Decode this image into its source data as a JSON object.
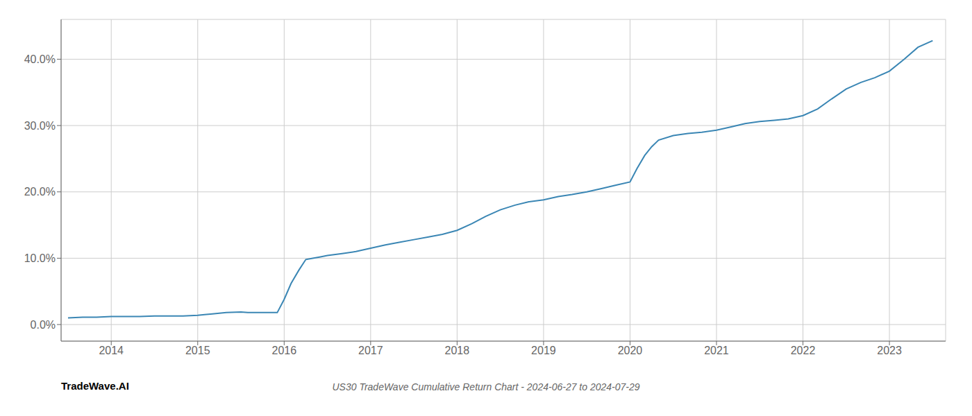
{
  "chart_data": {
    "type": "line",
    "title": "US30 TradeWave Cumulative Return Chart - 2024-06-27 to 2024-07-29",
    "annotations": [
      "TradeWave.AI"
    ],
    "color": "#3a86b4",
    "x": [
      2013.5,
      2013.67,
      2013.83,
      2014.0,
      2014.17,
      2014.33,
      2014.5,
      2014.67,
      2014.83,
      2015.0,
      2015.08,
      2015.17,
      2015.25,
      2015.33,
      2015.5,
      2015.58,
      2015.67,
      2015.75,
      2015.83,
      2015.92,
      2016.0,
      2016.08,
      2016.17,
      2016.25,
      2016.33,
      2016.42,
      2016.5,
      2016.67,
      2016.83,
      2017.0,
      2017.17,
      2017.33,
      2017.5,
      2017.67,
      2017.83,
      2018.0,
      2018.17,
      2018.33,
      2018.5,
      2018.67,
      2018.83,
      2019.0,
      2019.17,
      2019.33,
      2019.5,
      2019.67,
      2019.83,
      2020.0,
      2020.08,
      2020.17,
      2020.25,
      2020.33,
      2020.5,
      2020.67,
      2020.83,
      2021.0,
      2021.17,
      2021.33,
      2021.5,
      2021.67,
      2021.83,
      2022.0,
      2022.17,
      2022.33,
      2022.5,
      2022.67,
      2022.83,
      2023.0,
      2023.17,
      2023.33,
      2023.5
    ],
    "values": [
      0.01,
      0.011,
      0.011,
      0.012,
      0.012,
      0.012,
      0.013,
      0.013,
      0.013,
      0.014,
      0.015,
      0.016,
      0.017,
      0.018,
      0.019,
      0.018,
      0.018,
      0.018,
      0.018,
      0.018,
      0.038,
      0.062,
      0.082,
      0.098,
      0.1,
      0.102,
      0.104,
      0.107,
      0.11,
      0.115,
      0.12,
      0.124,
      0.128,
      0.132,
      0.136,
      0.142,
      0.152,
      0.163,
      0.173,
      0.18,
      0.185,
      0.188,
      0.193,
      0.196,
      0.2,
      0.205,
      0.21,
      0.215,
      0.235,
      0.255,
      0.268,
      0.278,
      0.285,
      0.288,
      0.29,
      0.293,
      0.298,
      0.303,
      0.306,
      0.308,
      0.31,
      0.315,
      0.325,
      0.34,
      0.355,
      0.365,
      0.372,
      0.382,
      0.4,
      0.418,
      0.428
    ],
    "xlim": [
      2013.42,
      2023.65
    ],
    "xticks": [
      2014,
      2015,
      2016,
      2017,
      2018,
      2019,
      2020,
      2021,
      2022,
      2023
    ],
    "ylim": [
      -0.025,
      0.46
    ],
    "yticks": [
      {
        "value": 0.0,
        "label": "0.0%"
      },
      {
        "value": 0.1,
        "label": "10.0%"
      },
      {
        "value": 0.2,
        "label": "20.0%"
      },
      {
        "value": 0.3,
        "label": "30.0%"
      },
      {
        "value": 0.4,
        "label": "40.0%"
      }
    ],
    "grid": true
  }
}
